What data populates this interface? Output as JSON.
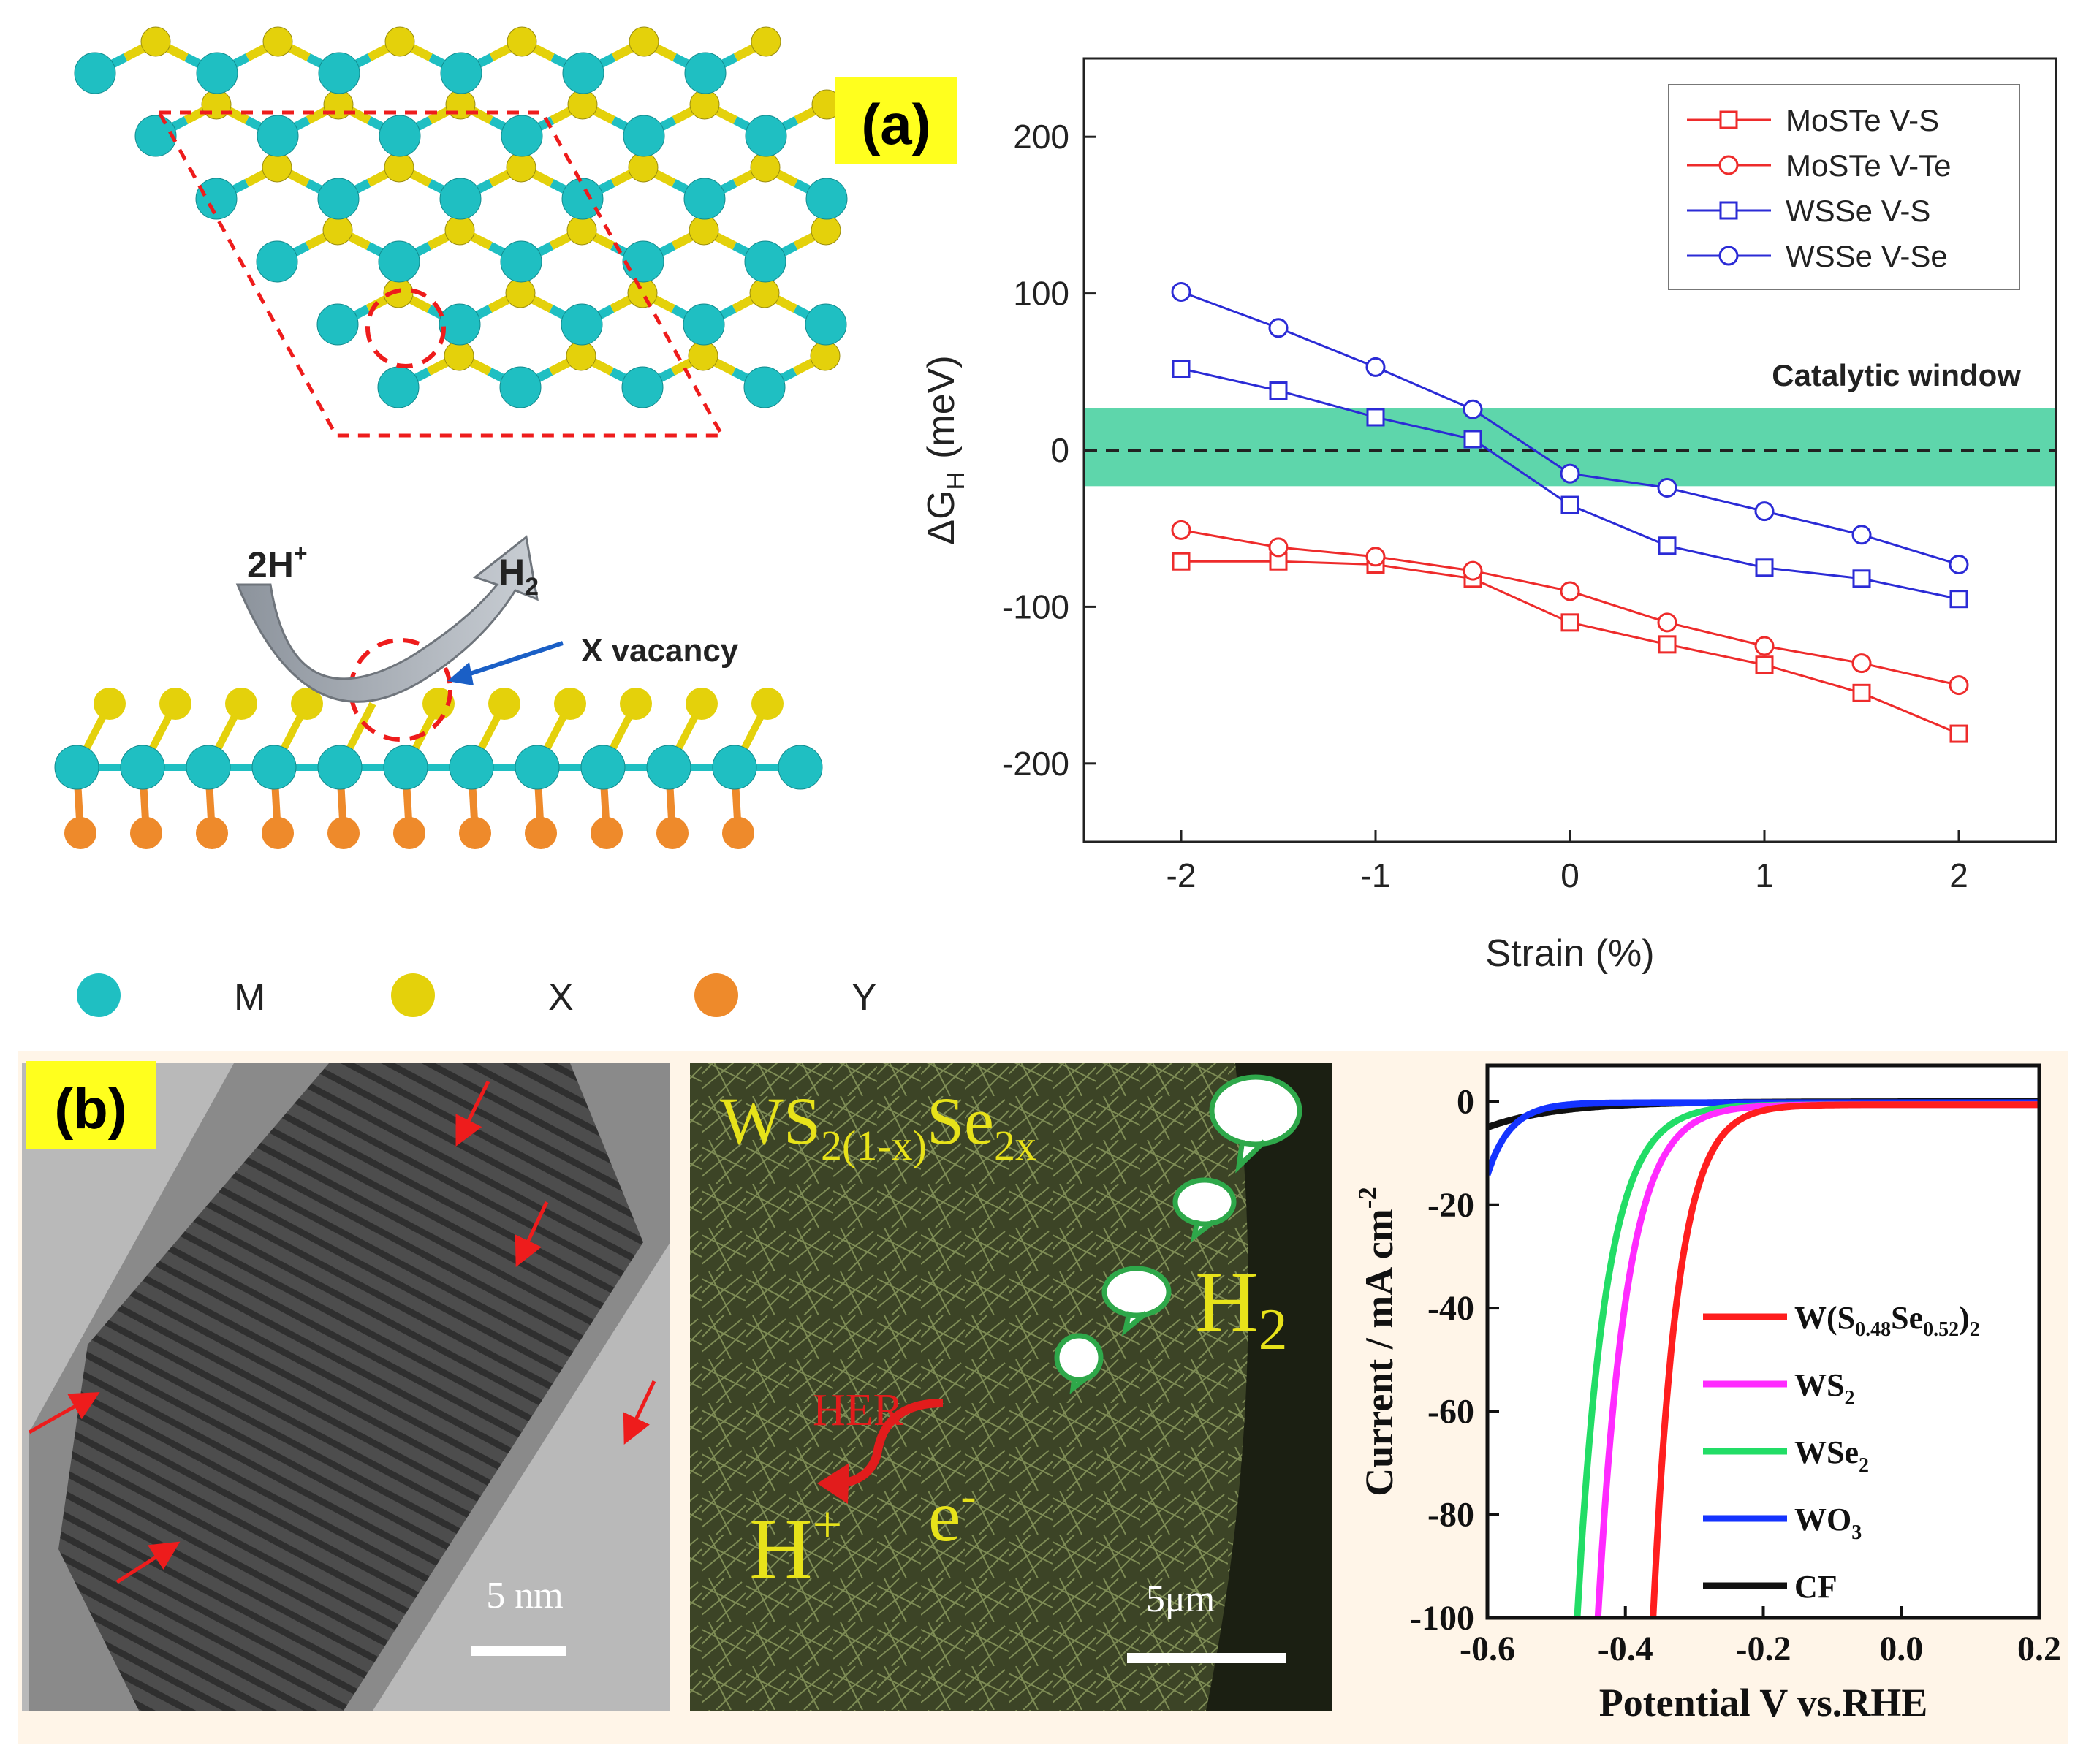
{
  "panel_a": {
    "label": "(a)",
    "reaction": {
      "reactant": "2H",
      "reactant_sup": "+",
      "product": "H",
      "product_sub": "2",
      "vacancy_label": "X vacancy"
    },
    "atom_legend": [
      {
        "symbol": "M",
        "color": "#1fbfc2"
      },
      {
        "symbol": "X",
        "color": "#e4d10b"
      },
      {
        "symbol": "Y",
        "color": "#ee8a2b"
      }
    ],
    "vacancy_atom_color": "#e6a07e"
  },
  "panel_b": {
    "label": "(b)",
    "tem_scale": "5 nm",
    "sem": {
      "formula_main": "WS",
      "formula_sub1": "2(1-x)",
      "formula_mid": "Se",
      "formula_sub2": "2x",
      "h2_main": "H",
      "h2_sub": "2",
      "her_label": "HER",
      "hplus_main": "H",
      "hplus_sup": "+",
      "electron_main": "e",
      "electron_sup": "-",
      "scale": "5μm"
    }
  },
  "chart_data": [
    {
      "type": "line",
      "title": "",
      "xlabel": "Strain (%)",
      "ylabel_main": "ΔG",
      "ylabel_sub": "H",
      "ylabel_unit": "(meV)",
      "xlim": [
        -2.5,
        2.5
      ],
      "ylim": [
        -250,
        250
      ],
      "xticks": [
        -2,
        -1,
        0,
        1,
        2
      ],
      "xtick_labels": [
        "-2",
        "-1",
        "0",
        "1",
        "2"
      ],
      "yticks": [
        200,
        100,
        0,
        -100,
        -200
      ],
      "ytick_labels": [
        "200",
        "100",
        "0",
        "-100",
        "-200"
      ],
      "catalytic_window": {
        "label": "Catalytic window",
        "y_min": -23,
        "y_max": 27,
        "color": "#5ed6ab"
      },
      "legend_position": "top-right",
      "x": [
        -2,
        -1.5,
        -1,
        -0.5,
        0,
        0.5,
        1,
        1.5,
        2
      ],
      "series": [
        {
          "name": "MoSTe V-S",
          "color": "#ee2b2b",
          "marker": "square",
          "values": [
            -71,
            -71,
            -73,
            -82,
            -110,
            -124,
            -137,
            -155,
            -181
          ]
        },
        {
          "name": "MoSTe V-Te",
          "color": "#ee2b2b",
          "marker": "circle",
          "values": [
            -51,
            -62,
            -68,
            -77,
            -90,
            -110,
            -125,
            -136,
            -150
          ]
        },
        {
          "name": "WSSe V-S",
          "color": "#2b2bd6",
          "marker": "square",
          "values": [
            52,
            38,
            21,
            7,
            -35,
            -61,
            -75,
            -82,
            -95
          ]
        },
        {
          "name": "WSSe V-Se",
          "color": "#2b2bd6",
          "marker": "circle",
          "values": [
            101,
            78,
            53,
            26,
            -15,
            -24,
            -39,
            -54,
            -73
          ]
        }
      ]
    },
    {
      "type": "line",
      "title": "",
      "xlabel": "Potential V vs.RHE",
      "ylabel": "Current / mA cm",
      "ylabel_sup": "-2",
      "xlim": [
        -0.6,
        0.2
      ],
      "ylim": [
        -100,
        7
      ],
      "xticks": [
        -0.6,
        -0.4,
        -0.2,
        0.0,
        0.2
      ],
      "xtick_labels": [
        "-0.6",
        "-0.4",
        "-0.2",
        "0.0",
        "0.2"
      ],
      "yticks": [
        0,
        -20,
        -40,
        -60,
        -80,
        -100
      ],
      "ytick_labels": [
        "0",
        "-20",
        "-40",
        "-60",
        "-80",
        "-100"
      ],
      "legend_position": "bottom-right",
      "series": [
        {
          "name": "W(S0.48Se0.52)2",
          "label_parts": [
            "W(S",
            "0.48",
            "Se",
            "0.52",
            ")",
            "2"
          ],
          "color": "#ff1e1e",
          "onset": -0.36,
          "k": 28
        },
        {
          "name": "WS2",
          "label_parts": [
            "WS",
            "2"
          ],
          "color": "#ff2bff",
          "onset": -0.44,
          "k": 24
        },
        {
          "name": "WSe2",
          "label_parts": [
            "WSe",
            "2"
          ],
          "color": "#22dd66",
          "onset": -0.47,
          "k": 24
        },
        {
          "name": "WO3",
          "label_parts": [
            "WO",
            "3"
          ],
          "color": "#1433ff",
          "onset": -0.6,
          "k": 30
        },
        {
          "name": "CF",
          "label_parts": [
            "CF"
          ],
          "color": "#111111",
          "onset": -0.6,
          "k": 10
        }
      ]
    }
  ]
}
